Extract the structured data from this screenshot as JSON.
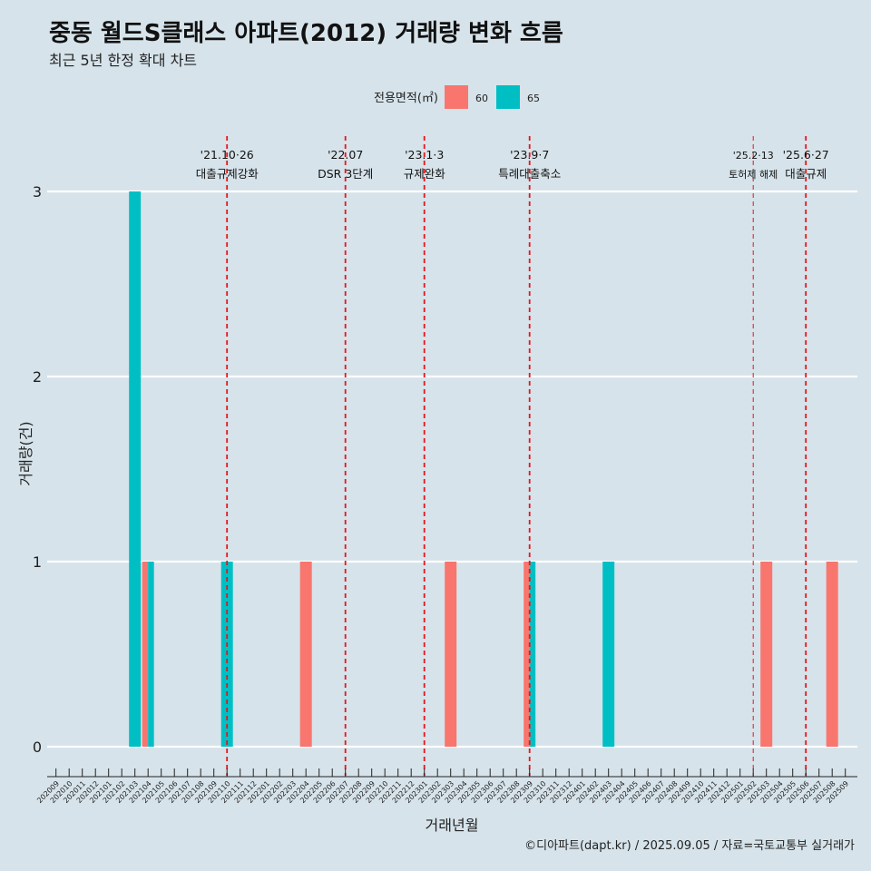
{
  "title": "중동 월드S클래스 아파트(2012) 거래량 변화 흐름",
  "subtitle": "최근 5년 한정 확대 차트",
  "caption": "©디아파트(dapt.kr) / 2025.09.05 / 자료=국토교통부 실거래가",
  "chart_data": {
    "type": "bar",
    "title": "중동 월드S클래스 아파트(2012) 거래량 변화 흐름",
    "xlabel": "거래년월",
    "ylabel": "거래량(건)",
    "ylim": [
      0,
      3
    ],
    "yticks": [
      0,
      1,
      2,
      3
    ],
    "legend": {
      "title": "전용면적(㎡)",
      "position": "top"
    },
    "categories": [
      "202009",
      "202010",
      "202011",
      "202012",
      "202101",
      "202102",
      "202103",
      "202104",
      "202105",
      "202106",
      "202107",
      "202108",
      "202109",
      "202110",
      "202111",
      "202112",
      "202201",
      "202202",
      "202203",
      "202204",
      "202205",
      "202206",
      "202207",
      "202208",
      "202209",
      "202210",
      "202211",
      "202212",
      "202301",
      "202302",
      "202303",
      "202304",
      "202305",
      "202306",
      "202307",
      "202308",
      "202309",
      "202310",
      "202311",
      "202312",
      "202401",
      "202402",
      "202403",
      "202404",
      "202405",
      "202406",
      "202407",
      "202408",
      "202409",
      "202410",
      "202411",
      "202412",
      "202501",
      "202502",
      "202503",
      "202504",
      "202505",
      "202506",
      "202507",
      "202508",
      "202509"
    ],
    "series": [
      {
        "name": "60",
        "color": "#f8766d",
        "values": [
          0,
          0,
          0,
          0,
          0,
          0,
          0,
          1,
          0,
          0,
          0,
          0,
          0,
          0,
          0,
          0,
          0,
          0,
          0,
          1,
          0,
          0,
          0,
          0,
          0,
          0,
          0,
          0,
          0,
          0,
          1,
          0,
          0,
          0,
          0,
          0,
          1,
          0,
          0,
          0,
          0,
          0,
          0,
          0,
          0,
          0,
          0,
          0,
          0,
          0,
          0,
          0,
          0,
          0,
          1,
          0,
          0,
          0,
          0,
          1,
          0
        ]
      },
      {
        "name": "65",
        "color": "#00bfc4",
        "values": [
          0,
          0,
          0,
          0,
          0,
          0,
          3,
          1,
          0,
          0,
          0,
          0,
          0,
          1,
          0,
          0,
          0,
          0,
          0,
          0,
          0,
          0,
          0,
          0,
          0,
          0,
          0,
          0,
          0,
          0,
          0,
          0,
          0,
          0,
          0,
          0,
          1,
          0,
          0,
          0,
          0,
          0,
          1,
          0,
          0,
          0,
          0,
          0,
          0,
          0,
          0,
          0,
          0,
          0,
          0,
          0,
          0,
          0,
          0,
          0,
          0
        ]
      }
    ],
    "annotations": [
      {
        "x": "202110",
        "date": "'21.10·26",
        "label": "대출규제강화"
      },
      {
        "x": "202207",
        "date": "'22.07",
        "label": "DSR 3단계"
      },
      {
        "x": "202301",
        "date": "'23.1·3",
        "label": "규제완화"
      },
      {
        "x": "202309",
        "date": "'23.9·7",
        "label": "특례대출축소"
      },
      {
        "x": "202502",
        "date": "'25.2·13",
        "label": "토허제 해제"
      },
      {
        "x": "202506",
        "date": "'25.6·27",
        "label": "대출규제"
      }
    ],
    "annotation_color": "#e8141b"
  }
}
